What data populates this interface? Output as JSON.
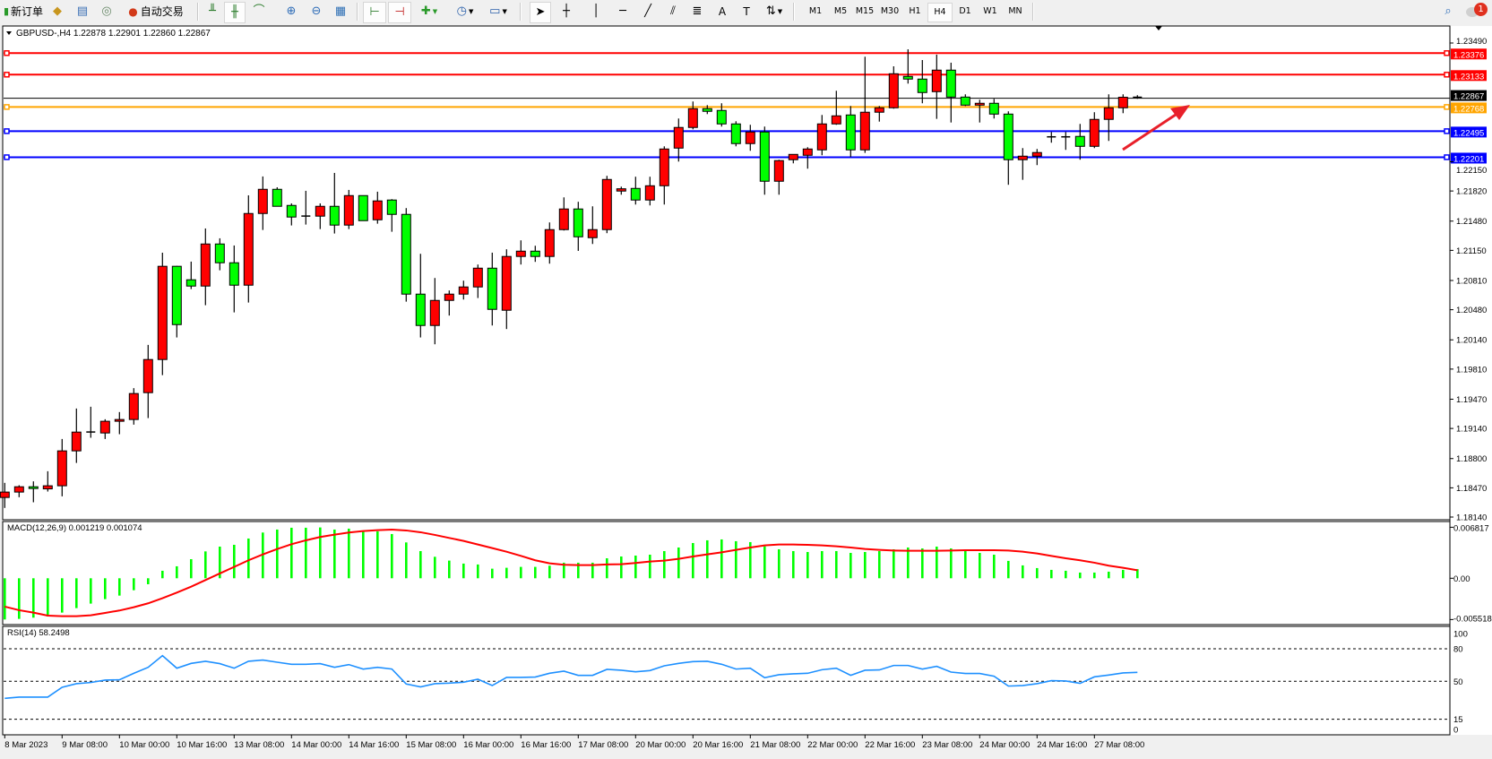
{
  "toolbar": {
    "new_order": "新订单",
    "auto_trading": "自动交易",
    "periods": [
      "M1",
      "M5",
      "M15",
      "M30",
      "H1",
      "H4",
      "D1",
      "W1",
      "MN"
    ],
    "active_period": "H4",
    "notification_count": "1"
  },
  "chart": {
    "header": "GBPUSD-,H4  1.22878 1.22901 1.22860 1.22867",
    "bull_color": "#ff0000",
    "bear_color": "#00ff00",
    "price_ticks": [
      "1.23490",
      "1.22150",
      "1.21820",
      "1.21480",
      "1.21150",
      "1.20810",
      "1.20480",
      "1.20140",
      "1.19810",
      "1.19470",
      "1.19140",
      "1.18800",
      "1.18470",
      "1.18140"
    ],
    "current_price": "1.22867",
    "levels": [
      {
        "price": "1.23376",
        "color": "#ff0000"
      },
      {
        "price": "1.23133",
        "color": "#ff0000"
      },
      {
        "price": "1.22768",
        "color": "#ffa500"
      },
      {
        "price": "1.22495",
        "color": "#0000ff"
      },
      {
        "price": "1.22201",
        "color": "#0000ff"
      }
    ],
    "annotation_arrow_color": "#e8202a"
  },
  "macd": {
    "label": "MACD(12,26,9) 0.001219 0.001074",
    "ticks": [
      "0.006817",
      "0.00",
      "-0.005518"
    ]
  },
  "rsi": {
    "label": "RSI(14) 58.2498",
    "ticks": [
      "100",
      "80",
      "50",
      "15",
      "0"
    ]
  },
  "time_labels": [
    "8 Mar 2023",
    "9 Mar 08:00",
    "10 Mar 00:00",
    "10 Mar 16:00",
    "13 Mar 08:00",
    "14 Mar 00:00",
    "14 Mar 16:00",
    "15 Mar 08:00",
    "16 Mar 00:00",
    "16 Mar 16:00",
    "17 Mar 08:00",
    "20 Mar 00:00",
    "20 Mar 16:00",
    "21 Mar 08:00",
    "22 Mar 00:00",
    "22 Mar 16:00",
    "23 Mar 08:00",
    "24 Mar 00:00",
    "24 Mar 16:00",
    "27 Mar 08:00"
  ],
  "chart_data": {
    "type": "candlestick",
    "symbol": "GBPUSD-",
    "timeframe": "H4",
    "ohlc": [
      [
        1.18361,
        1.18526,
        1.18243,
        1.18422
      ],
      [
        1.18422,
        1.18499,
        1.18364,
        1.18482
      ],
      [
        1.18482,
        1.18543,
        1.18307,
        1.18462
      ],
      [
        1.18458,
        1.18657,
        1.18428,
        1.18493
      ],
      [
        1.18493,
        1.19021,
        1.18374,
        1.18887
      ],
      [
        1.18887,
        1.19365,
        1.18751,
        1.19099
      ],
      [
        1.19099,
        1.19385,
        1.19035,
        1.191
      ],
      [
        1.19089,
        1.19244,
        1.19021,
        1.19221
      ],
      [
        1.19221,
        1.19325,
        1.19075,
        1.19241
      ],
      [
        1.19241,
        1.19595,
        1.19183,
        1.19534
      ],
      [
        1.19544,
        1.20083,
        1.19257,
        1.19918
      ],
      [
        1.19918,
        1.21124,
        1.19742,
        1.2097
      ],
      [
        1.2097,
        1.20975,
        1.20167,
        1.20312
      ],
      [
        1.20818,
        1.21023,
        1.20713,
        1.20747
      ],
      [
        1.20747,
        1.21397,
        1.20531,
        1.21222
      ],
      [
        1.21222,
        1.21286,
        1.20925,
        1.2101
      ],
      [
        1.2101,
        1.21205,
        1.2045,
        1.20757
      ],
      [
        1.20757,
        1.21771,
        1.20561,
        1.21566
      ],
      [
        1.21566,
        1.21984,
        1.2138,
        1.21839
      ],
      [
        1.21839,
        1.21862,
        1.21647,
        1.21647
      ],
      [
        1.21657,
        1.2168,
        1.21431,
        1.21526
      ],
      [
        1.21536,
        1.21822,
        1.21441,
        1.21537
      ],
      [
        1.21536,
        1.2168,
        1.2139,
        1.21647
      ],
      [
        1.21647,
        1.22024,
        1.2134,
        1.21435
      ],
      [
        1.21435,
        1.21832,
        1.2139,
        1.21768
      ],
      [
        1.21768,
        1.2177,
        1.21485,
        1.21485
      ],
      [
        1.21495,
        1.21812,
        1.21451,
        1.21708
      ],
      [
        1.21718,
        1.21728,
        1.2136,
        1.21556
      ],
      [
        1.21556,
        1.21627,
        1.20571,
        1.20656
      ],
      [
        1.20656,
        1.21111,
        1.20167,
        1.20302
      ],
      [
        1.20302,
        1.20838,
        1.2009,
        1.20585
      ],
      [
        1.20585,
        1.20697,
        1.20414,
        1.20656
      ],
      [
        1.20656,
        1.20808,
        1.20595,
        1.20737
      ],
      [
        1.20737,
        1.2099,
        1.20612,
        1.20949
      ],
      [
        1.20949,
        1.21124,
        1.20302,
        1.20484
      ],
      [
        1.20474,
        1.21162,
        1.20262,
        1.21081
      ],
      [
        1.21081,
        1.21263,
        1.2099,
        1.21141
      ],
      [
        1.21141,
        1.21202,
        1.2102,
        1.21081
      ],
      [
        1.21081,
        1.21465,
        1.21,
        1.21384
      ],
      [
        1.21384,
        1.21748,
        1.21374,
        1.21617
      ],
      [
        1.21617,
        1.21698,
        1.21144,
        1.21303
      ],
      [
        1.21293,
        1.21647,
        1.21222,
        1.21384
      ],
      [
        1.21384,
        1.21991,
        1.21344,
        1.2195
      ],
      [
        1.21819,
        1.21869,
        1.21778,
        1.21845
      ],
      [
        1.21849,
        1.21981,
        1.21667,
        1.21718
      ],
      [
        1.21718,
        1.21981,
        1.21657,
        1.21879
      ],
      [
        1.21879,
        1.22324,
        1.21667,
        1.22294
      ],
      [
        1.22304,
        1.22638,
        1.22152,
        1.22537
      ],
      [
        1.22537,
        1.2283,
        1.22516,
        1.22749
      ],
      [
        1.22749,
        1.22789,
        1.22688,
        1.22719
      ],
      [
        1.22729,
        1.2281,
        1.22547,
        1.22577
      ],
      [
        1.22577,
        1.22607,
        1.22324,
        1.22355
      ],
      [
        1.22355,
        1.22567,
        1.22274,
        1.22486
      ],
      [
        1.22486,
        1.22547,
        1.21778,
        1.2193
      ],
      [
        1.2193,
        1.22173,
        1.21778,
        1.22163
      ],
      [
        1.22173,
        1.22233,
        1.22132,
        1.22233
      ],
      [
        1.22223,
        1.22314,
        1.22072,
        1.22294
      ],
      [
        1.22284,
        1.22678,
        1.22223,
        1.22577
      ],
      [
        1.22577,
        1.22951,
        1.22567,
        1.22668
      ],
      [
        1.22678,
        1.22779,
        1.22203,
        1.22284
      ],
      [
        1.22284,
        1.23335,
        1.2225,
        1.22709
      ],
      [
        1.22709,
        1.22779,
        1.22603,
        1.22759
      ],
      [
        1.22759,
        1.23227,
        1.22749,
        1.23143
      ],
      [
        1.23113,
        1.23419,
        1.23032,
        1.23083
      ],
      [
        1.23083,
        1.23298,
        1.2281,
        1.22931
      ],
      [
        1.22941,
        1.23359,
        1.22634,
        1.23184
      ],
      [
        1.23184,
        1.23268,
        1.22593,
        1.2288
      ],
      [
        1.2288,
        1.22911,
        1.22779,
        1.22789
      ],
      [
        1.22789,
        1.2285,
        1.22593,
        1.2281
      ],
      [
        1.2281,
        1.2286,
        1.22638,
        1.22688
      ],
      [
        1.22688,
        1.22719,
        1.2189,
        1.22173
      ],
      [
        1.22173,
        1.22304,
        1.21946,
        1.22213
      ],
      [
        1.22213,
        1.22294,
        1.22112,
        1.22254
      ],
      [
        1.22431,
        1.22486,
        1.22365,
        1.22431
      ],
      [
        1.22431,
        1.22486,
        1.22284,
        1.22431
      ],
      [
        1.22436,
        1.22577,
        1.22173,
        1.22324
      ],
      [
        1.22324,
        1.22709,
        1.22304,
        1.22628
      ],
      [
        1.22628,
        1.22911,
        1.22385,
        1.22759
      ],
      [
        1.22759,
        1.22911,
        1.22698,
        1.22878
      ],
      [
        1.22878,
        1.22901,
        1.2286,
        1.22867
      ]
    ],
    "price_range": [
      1.1814,
      1.2349
    ],
    "macd_hist": [
      -0.00551,
      -0.00543,
      -0.00527,
      -0.00511,
      -0.00459,
      -0.00399,
      -0.00339,
      -0.00279,
      -0.00232,
      -0.0016,
      -0.0008,
      0.001,
      0.0016,
      0.00255,
      0.00359,
      0.00423,
      0.00447,
      0.00531,
      0.00611,
      0.00651,
      0.00675,
      0.00675,
      0.00679,
      0.00651,
      0.00663,
      0.00631,
      0.00627,
      0.00591,
      0.00479,
      0.00363,
      0.00287,
      0.00236,
      0.00196,
      0.00184,
      0.00128,
      0.0014,
      0.00152,
      0.00152,
      0.00168,
      0.00208,
      0.00208,
      0.00208,
      0.00267,
      0.00291,
      0.00303,
      0.00315,
      0.00363,
      0.00411,
      0.00471,
      0.00507,
      0.00519,
      0.00495,
      0.00483,
      0.00427,
      0.00387,
      0.00363,
      0.00351,
      0.00363,
      0.00363,
      0.00339,
      0.00351,
      0.00363,
      0.00387,
      0.00411,
      0.00399,
      0.00423,
      0.00399,
      0.00363,
      0.00339,
      0.00315,
      0.00232,
      0.00172,
      0.00136,
      0.00112,
      0.001,
      0.00076,
      0.00076,
      0.00088,
      0.00112,
      0.001219
    ],
    "macd_signal": [
      -0.00379,
      -0.00427,
      -0.00459,
      -0.00499,
      -0.00507,
      -0.00507,
      -0.00495,
      -0.00463,
      -0.00431,
      -0.00387,
      -0.00335,
      -0.00267,
      -0.00192,
      -0.00112,
      -0.00024,
      0.00064,
      0.00152,
      0.0024,
      0.00319,
      0.00391,
      0.00455,
      0.00507,
      0.00551,
      0.00583,
      0.00611,
      0.00631,
      0.00643,
      0.00651,
      0.00639,
      0.00615,
      0.00579,
      0.00539,
      0.00499,
      0.00451,
      0.00403,
      0.00355,
      0.00299,
      0.0024,
      0.002,
      0.0018,
      0.00176,
      0.00176,
      0.00184,
      0.00188,
      0.00204,
      0.00224,
      0.00236,
      0.00259,
      0.00291,
      0.00319,
      0.00347,
      0.00379,
      0.00411,
      0.00439,
      0.00451,
      0.00451,
      0.00447,
      0.00439,
      0.00427,
      0.00411,
      0.00391,
      0.00379,
      0.00371,
      0.00367,
      0.00367,
      0.00367,
      0.00371,
      0.00375,
      0.00375,
      0.00375,
      0.00371,
      0.00355,
      0.00331,
      0.00299,
      0.00267,
      0.0024,
      0.00208,
      0.00168,
      0.0014,
      0.001074
    ],
    "macd_range": [
      -0.005518,
      0.006817
    ],
    "rsi": [
      34.3,
      35.4,
      35.4,
      35.4,
      44.5,
      47.8,
      48.9,
      51.1,
      51.4,
      57.4,
      62.9,
      73.7,
      62.1,
      66.5,
      68.5,
      66.3,
      62.1,
      68.5,
      69.6,
      67.6,
      65.7,
      65.7,
      66.3,
      62.9,
      65.4,
      61.3,
      62.9,
      61.3,
      47.5,
      44.8,
      47.8,
      48.3,
      49.2,
      51.9,
      46.1,
      53.6,
      53.6,
      53.9,
      57.4,
      59.4,
      55.5,
      55.5,
      61.0,
      60.2,
      58.8,
      59.9,
      64.3,
      66.5,
      68.2,
      68.5,
      65.7,
      61.3,
      62.1,
      53.3,
      56.1,
      56.9,
      57.4,
      60.7,
      62.1,
      55.5,
      60.2,
      60.5,
      64.6,
      64.6,
      61.3,
      63.8,
      58.5,
      57.2,
      57.2,
      54.7,
      45.6,
      46.1,
      47.8,
      50.6,
      50.3,
      48.1,
      54.1,
      55.8,
      57.7,
      58.2498
    ],
    "rsi_levels": [
      80,
      50,
      15
    ]
  }
}
